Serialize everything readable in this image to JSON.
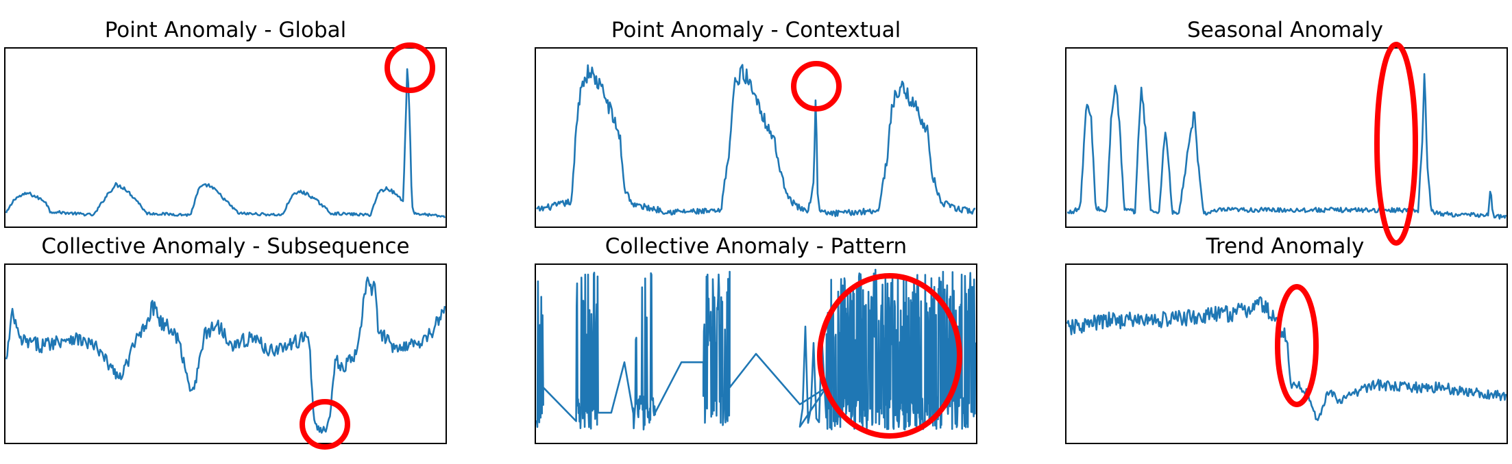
{
  "chart_data": [
    {
      "type": "line",
      "title": "Point Anomaly - Global",
      "axes_visible": false,
      "series_color": "#1f77b4",
      "annotation": {
        "shape": "circle",
        "color": "#ff0000"
      },
      "x": [
        0.0,
        0.02,
        0.05,
        0.09,
        0.1,
        0.2,
        0.23,
        0.25,
        0.27,
        0.3,
        0.32,
        0.42,
        0.44,
        0.46,
        0.48,
        0.51,
        0.53,
        0.63,
        0.65,
        0.67,
        0.69,
        0.72,
        0.74,
        0.83,
        0.85,
        0.87,
        0.89,
        0.905,
        0.91,
        0.915,
        0.92,
        0.925,
        0.93,
        1.0
      ],
      "y": [
        0.05,
        0.14,
        0.17,
        0.12,
        0.06,
        0.04,
        0.16,
        0.22,
        0.2,
        0.12,
        0.05,
        0.04,
        0.2,
        0.22,
        0.18,
        0.1,
        0.05,
        0.04,
        0.15,
        0.18,
        0.16,
        0.1,
        0.05,
        0.04,
        0.18,
        0.2,
        0.16,
        0.12,
        0.55,
        0.95,
        0.6,
        0.1,
        0.05,
        0.03
      ],
      "noise": 0.018
    },
    {
      "type": "line",
      "title": "Point Anomaly - Contextual",
      "axes_visible": false,
      "series_color": "#1f77b4",
      "annotation": {
        "shape": "circle",
        "color": "#ff0000"
      },
      "x": [
        0.0,
        0.05,
        0.08,
        0.09,
        0.1,
        0.12,
        0.15,
        0.17,
        0.19,
        0.2,
        0.22,
        0.3,
        0.42,
        0.44,
        0.45,
        0.47,
        0.5,
        0.52,
        0.54,
        0.56,
        0.58,
        0.6,
        0.62,
        0.632,
        0.636,
        0.64,
        0.645,
        0.66,
        0.7,
        0.78,
        0.8,
        0.81,
        0.83,
        0.86,
        0.89,
        0.9,
        0.92,
        0.95,
        1.0
      ],
      "y": [
        0.07,
        0.1,
        0.12,
        0.55,
        0.8,
        0.9,
        0.78,
        0.65,
        0.5,
        0.2,
        0.1,
        0.06,
        0.06,
        0.45,
        0.8,
        0.9,
        0.75,
        0.6,
        0.5,
        0.25,
        0.12,
        0.08,
        0.07,
        0.25,
        0.8,
        0.2,
        0.06,
        0.05,
        0.05,
        0.07,
        0.4,
        0.7,
        0.8,
        0.7,
        0.55,
        0.3,
        0.12,
        0.08,
        0.06
      ],
      "noise": 0.04
    },
    {
      "type": "line",
      "title": "Seasonal Anomaly",
      "axes_visible": false,
      "series_color": "#1f77b4",
      "annotation": {
        "shape": "ellipse",
        "color": "#ff0000"
      },
      "x": [
        0.0,
        0.03,
        0.04,
        0.045,
        0.055,
        0.065,
        0.09,
        0.1,
        0.11,
        0.12,
        0.13,
        0.155,
        0.165,
        0.17,
        0.18,
        0.19,
        0.21,
        0.22,
        0.225,
        0.24,
        0.255,
        0.28,
        0.29,
        0.295,
        0.31,
        0.32,
        0.3,
        0.32,
        0.31,
        0.32,
        0.35,
        0.8,
        0.81,
        0.815,
        0.82,
        0.825,
        0.83,
        0.84,
        0.9,
        0.92,
        0.94,
        0.96,
        0.965,
        0.97,
        0.98,
        1.0
      ],
      "y": [
        0.05,
        0.08,
        0.55,
        0.7,
        0.6,
        0.08,
        0.06,
        0.6,
        0.85,
        0.55,
        0.07,
        0.06,
        0.65,
        0.8,
        0.5,
        0.06,
        0.06,
        0.45,
        0.55,
        0.05,
        0.05,
        0.5,
        0.65,
        0.45,
        0.06,
        0.05,
        0.05,
        0.05,
        0.05,
        0.05,
        0.07,
        0.07,
        0.5,
        0.9,
        0.4,
        0.2,
        0.08,
        0.05,
        0.04,
        0.04,
        0.04,
        0.04,
        0.2,
        0.04,
        0.03,
        0.03
      ],
      "noise": 0.03
    },
    {
      "type": "line",
      "title": "Collective Anomaly - Subsequence",
      "axes_visible": false,
      "series_color": "#1f77b4",
      "annotation": {
        "shape": "circle",
        "color": "#ff0000"
      },
      "x": [
        0.0,
        0.015,
        0.03,
        0.08,
        0.15,
        0.2,
        0.26,
        0.3,
        0.34,
        0.35,
        0.39,
        0.42,
        0.43,
        0.45,
        0.48,
        0.52,
        0.56,
        0.6,
        0.65,
        0.69,
        0.7,
        0.71,
        0.72,
        0.73,
        0.74,
        0.75,
        0.76,
        0.8,
        0.82,
        0.84,
        0.85,
        0.86,
        0.88,
        0.92,
        0.96,
        1.0
      ],
      "y": [
        0.45,
        0.75,
        0.58,
        0.55,
        0.6,
        0.55,
        0.35,
        0.6,
        0.8,
        0.7,
        0.6,
        0.3,
        0.3,
        0.6,
        0.68,
        0.55,
        0.6,
        0.52,
        0.55,
        0.62,
        0.15,
        0.05,
        0.05,
        0.05,
        0.15,
        0.5,
        0.4,
        0.5,
        0.9,
        0.9,
        0.6,
        0.6,
        0.55,
        0.55,
        0.6,
        0.75
      ],
      "noise": 0.045
    },
    {
      "type": "line",
      "title": "Collective Anomaly - Pattern",
      "axes_visible": false,
      "series_color": "#1f77b4",
      "annotation": {
        "shape": "circle",
        "color": "#ff0000"
      },
      "segments": [
        {
          "kind": "burst",
          "x0": 0.0,
          "x1": 0.015,
          "n": 10,
          "seed": 11
        },
        {
          "kind": "line",
          "x": [
            0.015,
            0.09
          ],
          "y": [
            0.3,
            0.1
          ]
        },
        {
          "kind": "burst",
          "x0": 0.09,
          "x1": 0.14,
          "n": 46,
          "seed": 23
        },
        {
          "kind": "line",
          "x": [
            0.14,
            0.17,
            0.2,
            0.22
          ],
          "y": [
            0.15,
            0.15,
            0.45,
            0.15
          ]
        },
        {
          "kind": "burst",
          "x0": 0.22,
          "x1": 0.27,
          "n": 42,
          "seed": 37
        },
        {
          "kind": "line",
          "x": [
            0.27,
            0.33,
            0.38
          ],
          "y": [
            0.15,
            0.45,
            0.45
          ]
        },
        {
          "kind": "burst",
          "x0": 0.38,
          "x1": 0.44,
          "n": 50,
          "seed": 41
        },
        {
          "kind": "line",
          "x": [
            0.44,
            0.5,
            0.6,
            0.66
          ],
          "y": [
            0.3,
            0.5,
            0.2,
            0.3
          ]
        },
        {
          "kind": "burst",
          "x0": 0.6,
          "x1": 0.65,
          "n": 8,
          "seed": 53
        },
        {
          "kind": "burst",
          "x0": 0.66,
          "x1": 1.0,
          "n": 360,
          "seed": 67
        }
      ],
      "noise": 0.0
    },
    {
      "type": "line",
      "title": "Trend Anomaly",
      "axes_visible": false,
      "series_color": "#1f77b4",
      "annotation": {
        "shape": "ellipse",
        "color": "#ff0000"
      },
      "x": [
        0.0,
        0.1,
        0.2,
        0.3,
        0.4,
        0.44,
        0.46,
        0.5,
        0.51,
        0.53,
        0.55,
        0.57,
        0.6,
        0.62,
        0.64,
        0.68,
        0.7,
        0.75,
        0.8,
        0.85,
        0.9,
        0.95,
        1.0
      ],
      "y": [
        0.65,
        0.7,
        0.7,
        0.72,
        0.75,
        0.8,
        0.75,
        0.6,
        0.3,
        0.32,
        0.25,
        0.1,
        0.3,
        0.2,
        0.25,
        0.3,
        0.32,
        0.3,
        0.3,
        0.3,
        0.28,
        0.26,
        0.25
      ],
      "noise": 0.045
    }
  ]
}
